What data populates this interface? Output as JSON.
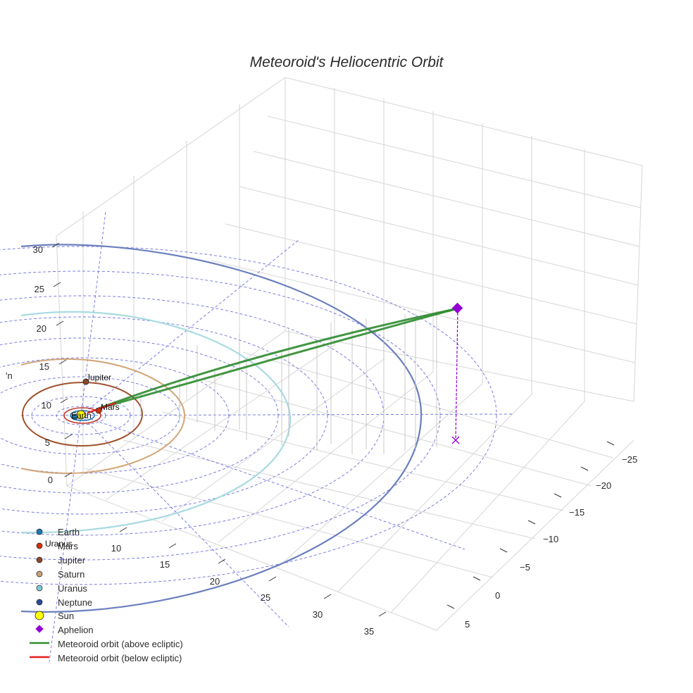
{
  "chart_data": {
    "type": "3d-orbit",
    "title": "Meteoroid's Heliocentric Orbit",
    "axes": {
      "x_ticks": [
        "0",
        "5",
        "10",
        "15",
        "20",
        "25",
        "30"
      ],
      "y_ticks": [
        "10",
        "15",
        "20",
        "25",
        "30",
        "35"
      ],
      "z_ticks": [
        "−25",
        "−20",
        "−15",
        "−10",
        "−5",
        "0",
        "5"
      ],
      "partial_axis_label": "'n"
    },
    "planets": [
      {
        "name": "Earth",
        "color": "#1f77b4",
        "orbit_color": "#1f77b4",
        "radius_au": 1.0
      },
      {
        "name": "Mars",
        "color": "#d62f0a",
        "orbit_color": "#c0392b",
        "radius_au": 1.52
      },
      {
        "name": "Jupiter",
        "color": "#8b4a2b",
        "orbit_color": "#a0522d",
        "radius_au": 5.2
      },
      {
        "name": "Saturn",
        "color": "#c8a07a",
        "orbit_color": "#d2a679",
        "radius_au": 9.58
      },
      {
        "name": "Uranus",
        "color": "#7fc8d8",
        "orbit_color": "#a8dbe0",
        "radius_au": 19.2
      },
      {
        "name": "Neptune",
        "color": "#2c4a9c",
        "orbit_color": "#6a7fbd",
        "radius_au": 30.05
      }
    ],
    "sun": {
      "name": "Sun",
      "color": "#ffff00"
    },
    "aphelion": {
      "name": "Aphelion",
      "color": "#9400d3"
    },
    "meteoroid_above": {
      "name": "Meteoroid orbit (above ecliptic)",
      "color": "#2e8b2e"
    },
    "meteoroid_below": {
      "name": "Meteoroid orbit (below ecliptic)",
      "color": "#e02020"
    },
    "legend": [
      "Earth",
      "Mars",
      "Jupiter",
      "Saturn",
      "Uranus",
      "Neptune",
      "Sun",
      "Aphelion",
      "Meteoroid orbit (above ecliptic)",
      "Meteoroid orbit (below ecliptic)"
    ],
    "point_labels": [
      "Jupiter",
      "Mars",
      "Earth",
      "Uranus"
    ]
  }
}
